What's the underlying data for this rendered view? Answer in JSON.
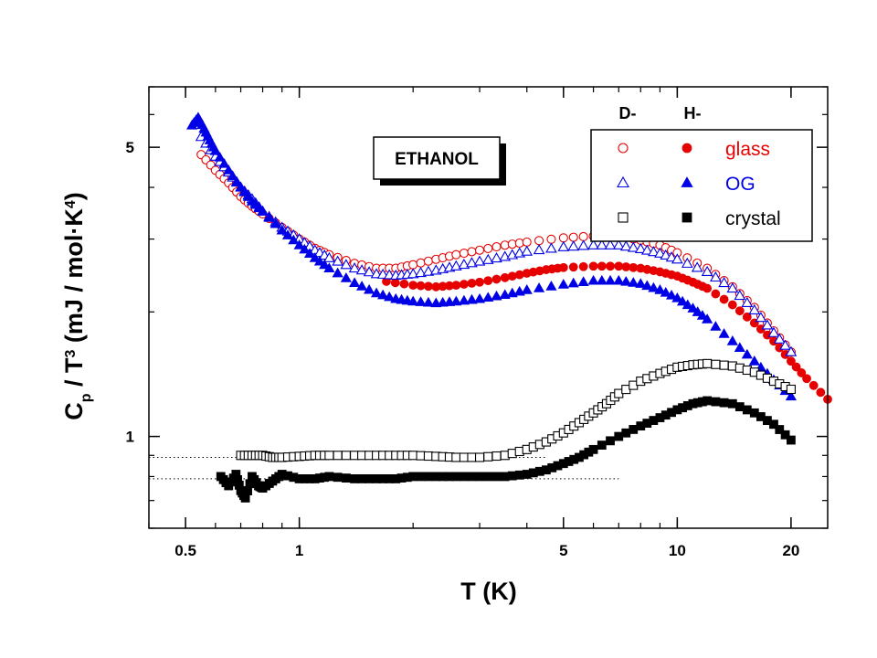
{
  "chart_data": {
    "type": "scatter",
    "title": "",
    "annotation": "ETHANOL",
    "xlabel": "T (K)",
    "ylabel": {
      "parts": [
        {
          "t": "C",
          "s": "n"
        },
        {
          "t": "p",
          "s": "sub"
        },
        {
          "t": " / T",
          "s": "n"
        },
        {
          "t": "3",
          "s": "sup"
        },
        {
          "t": " (mJ / mol·K",
          "s": "n"
        },
        {
          "t": "4",
          "s": "sup"
        },
        {
          "t": ")",
          "s": "n"
        }
      ]
    },
    "x_scale": "log",
    "y_scale": "log",
    "xlim": [
      0.4,
      25
    ],
    "ylim": [
      0.6,
      7.0
    ],
    "x_ticks": [
      {
        "value": 0.5,
        "label": "0.5"
      },
      {
        "value": 1,
        "label": "1"
      },
      {
        "value": 5,
        "label": "5"
      },
      {
        "value": 10,
        "label": "10"
      },
      {
        "value": 20,
        "label": "20"
      }
    ],
    "y_ticks": [
      {
        "value": 1,
        "label": "1"
      },
      {
        "value": 5,
        "label": "5"
      }
    ],
    "legend": {
      "position": "top-right",
      "column_headers": [
        "D-",
        "H-"
      ],
      "rows": [
        {
          "label": "glass",
          "color": "#e60000",
          "marker": "circle"
        },
        {
          "label": "OG",
          "color": "#0000e6",
          "marker": "triangle"
        },
        {
          "label": "crystal",
          "color": "#000000",
          "marker": "square"
        }
      ]
    },
    "reference_lines": [
      {
        "y": 0.89,
        "x_from": 0.4,
        "x_to": 4.5,
        "style": "dotted"
      },
      {
        "y": 0.79,
        "x_from": 0.4,
        "x_to": 7.0,
        "style": "dotted"
      }
    ],
    "series": [
      {
        "name": "D- glass",
        "marker": "circle",
        "filled": false,
        "color": "#e60000",
        "x": [
          0.55,
          0.6,
          0.65,
          0.7,
          0.75,
          0.8,
          0.9,
          1.0,
          1.1,
          1.2,
          1.4,
          1.6,
          1.8,
          2.0,
          2.3,
          2.6,
          3.0,
          3.5,
          4.0,
          5.0,
          6.0,
          7.0,
          8.0,
          9.0,
          10,
          12,
          14,
          16,
          18,
          20
        ],
        "y": [
          4.8,
          4.4,
          4.1,
          3.8,
          3.6,
          3.45,
          3.2,
          3.0,
          2.85,
          2.75,
          2.62,
          2.55,
          2.55,
          2.6,
          2.68,
          2.75,
          2.82,
          2.9,
          2.95,
          3.02,
          3.05,
          3.05,
          2.98,
          2.9,
          2.78,
          2.55,
          2.3,
          2.05,
          1.8,
          1.6
        ]
      },
      {
        "name": "H- glass",
        "marker": "circle",
        "filled": true,
        "color": "#e60000",
        "x": [
          1.7,
          2.0,
          2.3,
          2.6,
          3.0,
          3.5,
          4.0,
          4.5,
          5.0,
          6.0,
          7.0,
          8.0,
          9.0,
          10,
          11,
          12,
          14,
          16,
          18,
          20,
          22,
          25
        ],
        "y": [
          2.37,
          2.32,
          2.3,
          2.32,
          2.36,
          2.42,
          2.48,
          2.53,
          2.56,
          2.58,
          2.58,
          2.55,
          2.5,
          2.44,
          2.36,
          2.28,
          2.08,
          1.88,
          1.7,
          1.52,
          1.38,
          1.23
        ]
      },
      {
        "name": "D- OG",
        "marker": "triangle",
        "filled": false,
        "color": "#0000e6",
        "x": [
          0.55,
          0.6,
          0.65,
          0.7,
          0.75,
          0.8,
          0.9,
          1.0,
          1.1,
          1.2,
          1.4,
          1.6,
          1.8,
          2.0,
          2.3,
          2.6,
          3.0,
          3.5,
          4.0,
          5.0,
          6.0,
          7.0,
          8.0,
          9.0,
          10,
          12,
          14,
          16,
          18,
          20
        ],
        "y": [
          5.3,
          4.75,
          4.35,
          4.0,
          3.75,
          3.5,
          3.2,
          3.0,
          2.82,
          2.7,
          2.55,
          2.47,
          2.45,
          2.47,
          2.52,
          2.58,
          2.65,
          2.72,
          2.8,
          2.87,
          2.9,
          2.9,
          2.84,
          2.77,
          2.68,
          2.5,
          2.28,
          2.02,
          1.78,
          1.6
        ]
      },
      {
        "name": "H- OG",
        "marker": "triangle",
        "filled": true,
        "color": "#0000e6",
        "x": [
          0.52,
          0.54,
          0.56,
          0.58,
          0.6,
          0.65,
          0.7,
          0.75,
          0.8,
          0.9,
          1.0,
          1.1,
          1.2,
          1.4,
          1.6,
          1.8,
          2.0,
          2.3,
          2.6,
          3.0,
          3.5,
          4.0,
          5.0,
          6.0,
          7.0,
          8.0,
          9.0,
          10,
          11,
          12,
          14,
          16,
          18,
          20
        ],
        "y": [
          5.65,
          5.9,
          5.55,
          5.2,
          4.9,
          4.4,
          4.0,
          3.7,
          3.5,
          3.15,
          2.9,
          2.7,
          2.55,
          2.35,
          2.22,
          2.15,
          2.12,
          2.1,
          2.12,
          2.15,
          2.2,
          2.26,
          2.33,
          2.38,
          2.38,
          2.34,
          2.26,
          2.16,
          2.04,
          1.92,
          1.7,
          1.52,
          1.37,
          1.25
        ]
      },
      {
        "name": "D- crystal",
        "marker": "square",
        "filled": false,
        "color": "#000000",
        "x": [
          0.7,
          0.75,
          0.8,
          0.85,
          0.9,
          1.0,
          1.1,
          1.2,
          1.4,
          1.6,
          1.8,
          2.0,
          2.3,
          2.6,
          3.0,
          3.5,
          4.0,
          4.5,
          5.0,
          5.5,
          6.0,
          6.5,
          7.0,
          8.0,
          9.0,
          10,
          11,
          12,
          14,
          16,
          18,
          20
        ],
        "y": [
          0.9,
          0.9,
          0.9,
          0.89,
          0.89,
          0.895,
          0.9,
          0.9,
          0.9,
          0.9,
          0.9,
          0.9,
          0.895,
          0.89,
          0.89,
          0.9,
          0.93,
          0.97,
          1.02,
          1.08,
          1.14,
          1.2,
          1.27,
          1.36,
          1.42,
          1.47,
          1.49,
          1.5,
          1.48,
          1.43,
          1.36,
          1.3
        ]
      },
      {
        "name": "H- crystal",
        "marker": "square",
        "filled": true,
        "color": "#000000",
        "x": [
          0.62,
          0.65,
          0.68,
          0.7,
          0.72,
          0.75,
          0.78,
          0.8,
          0.85,
          0.9,
          1.0,
          1.1,
          1.2,
          1.4,
          1.6,
          1.8,
          2.0,
          2.3,
          2.6,
          3.0,
          3.5,
          4.0,
          4.5,
          5.0,
          5.5,
          6.0,
          7.0,
          8.0,
          9.0,
          10,
          11,
          12,
          14,
          16,
          18,
          20
        ],
        "y": [
          0.8,
          0.76,
          0.81,
          0.74,
          0.71,
          0.8,
          0.76,
          0.75,
          0.78,
          0.81,
          0.79,
          0.79,
          0.8,
          0.79,
          0.79,
          0.79,
          0.8,
          0.8,
          0.8,
          0.8,
          0.8,
          0.81,
          0.83,
          0.86,
          0.89,
          0.93,
          1.0,
          1.06,
          1.11,
          1.16,
          1.2,
          1.22,
          1.2,
          1.14,
          1.07,
          0.98
        ]
      }
    ]
  }
}
